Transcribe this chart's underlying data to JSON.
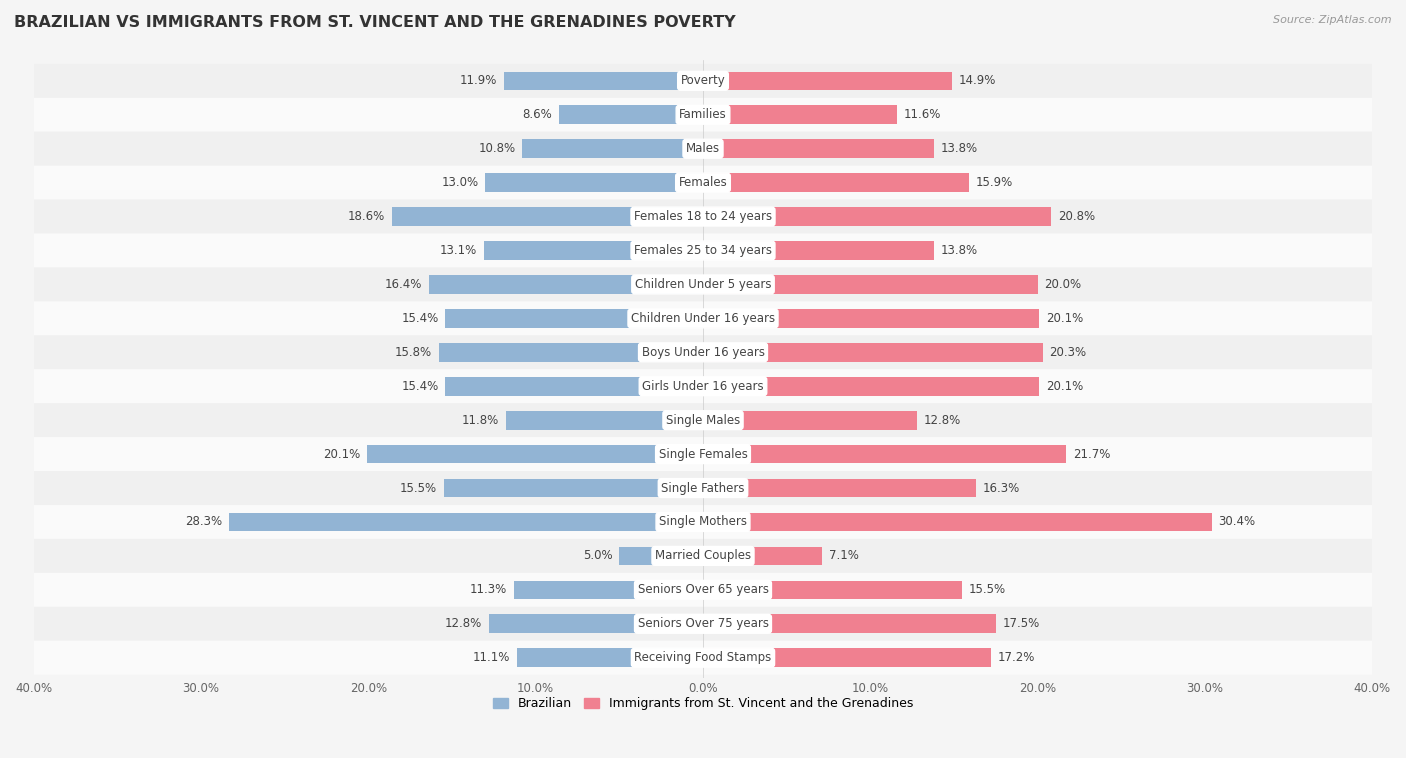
{
  "title": "BRAZILIAN VS IMMIGRANTS FROM ST. VINCENT AND THE GRENADINES POVERTY",
  "source": "Source: ZipAtlas.com",
  "categories": [
    "Poverty",
    "Families",
    "Males",
    "Females",
    "Females 18 to 24 years",
    "Females 25 to 34 years",
    "Children Under 5 years",
    "Children Under 16 years",
    "Boys Under 16 years",
    "Girls Under 16 years",
    "Single Males",
    "Single Females",
    "Single Fathers",
    "Single Mothers",
    "Married Couples",
    "Seniors Over 65 years",
    "Seniors Over 75 years",
    "Receiving Food Stamps"
  ],
  "brazilian_values": [
    11.9,
    8.6,
    10.8,
    13.0,
    18.6,
    13.1,
    16.4,
    15.4,
    15.8,
    15.4,
    11.8,
    20.1,
    15.5,
    28.3,
    5.0,
    11.3,
    12.8,
    11.1
  ],
  "immigrant_values": [
    14.9,
    11.6,
    13.8,
    15.9,
    20.8,
    13.8,
    20.0,
    20.1,
    20.3,
    20.1,
    12.8,
    21.7,
    16.3,
    30.4,
    7.1,
    15.5,
    17.5,
    17.2
  ],
  "brazilian_color": "#92b4d4",
  "immigrant_color": "#f08090",
  "row_bg_even": "#f0f0f0",
  "row_bg_odd": "#fafafa",
  "background_color": "#f5f5f5",
  "xlim": 40,
  "legend_labels": [
    "Brazilian",
    "Immigrants from St. Vincent and the Grenadines"
  ],
  "title_fontsize": 11.5,
  "label_fontsize": 8.5,
  "value_fontsize": 8.5
}
